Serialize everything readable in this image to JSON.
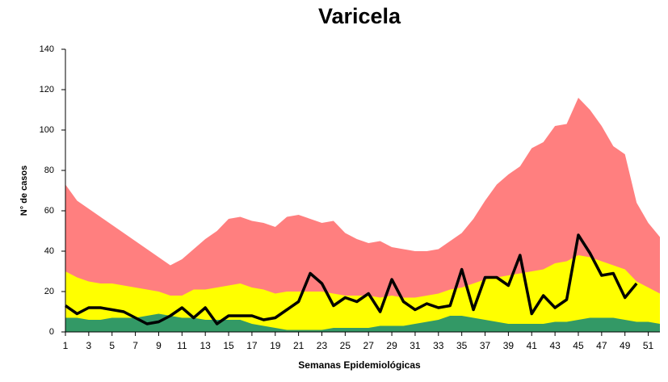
{
  "chart_data": {
    "type": "area",
    "title": "Varicela",
    "x_label": "Semanas Epidemiológicas",
    "y_label": "N° de casos",
    "x": [
      1,
      2,
      3,
      4,
      5,
      6,
      7,
      8,
      9,
      10,
      11,
      12,
      13,
      14,
      15,
      16,
      17,
      18,
      19,
      20,
      21,
      22,
      23,
      24,
      25,
      26,
      27,
      28,
      29,
      30,
      31,
      32,
      33,
      34,
      35,
      36,
      37,
      38,
      39,
      40,
      41,
      42,
      43,
      44,
      45,
      46,
      47,
      48,
      49,
      50,
      51,
      52
    ],
    "xlim": [
      1,
      52
    ],
    "xticks": [
      1,
      3,
      5,
      7,
      9,
      11,
      13,
      15,
      17,
      19,
      21,
      23,
      25,
      27,
      29,
      31,
      33,
      35,
      37,
      39,
      41,
      43,
      45,
      47,
      49,
      51
    ],
    "ylim": [
      0,
      140
    ],
    "yticks": [
      0,
      20,
      40,
      60,
      80,
      100,
      120,
      140
    ],
    "grid": false,
    "series": [
      {
        "color": "#ff7f7f",
        "values": [
          73,
          65,
          61,
          57,
          53,
          49,
          45,
          41,
          37,
          33,
          36,
          41,
          46,
          50,
          56,
          57,
          55,
          54,
          52,
          57,
          58,
          56,
          54,
          55,
          49,
          46,
          44,
          45,
          42,
          41,
          40,
          40,
          41,
          45,
          49,
          56,
          65,
          73,
          78,
          82,
          91,
          94,
          102,
          103,
          116,
          110,
          102,
          92,
          88,
          64,
          54,
          47
        ]
      },
      {
        "color": "#ffff00",
        "values": [
          30,
          27,
          25,
          24,
          24,
          23,
          22,
          21,
          20,
          18,
          18,
          21,
          21,
          22,
          23,
          24,
          22,
          21,
          19,
          20,
          20,
          20,
          20,
          19,
          18,
          18,
          18,
          17,
          18,
          17,
          17,
          18,
          19,
          21,
          22,
          24,
          26,
          27,
          28,
          29,
          30,
          31,
          34,
          35,
          38,
          37,
          35,
          33,
          31,
          25,
          22,
          19
        ]
      },
      {
        "color": "#339966",
        "values": [
          7,
          7,
          6,
          6,
          7,
          7,
          7,
          8,
          9,
          8,
          7,
          7,
          6,
          6,
          6,
          6,
          4,
          3,
          2,
          1,
          1,
          1,
          1,
          2,
          2,
          2,
          2,
          3,
          3,
          3,
          4,
          5,
          6,
          8,
          8,
          7,
          6,
          5,
          4,
          4,
          4,
          4,
          5,
          5,
          6,
          7,
          7,
          7,
          6,
          5,
          5,
          4
        ]
      },
      {
        "type": "line",
        "color": "#000000",
        "values": [
          13,
          9,
          12,
          12,
          11,
          10,
          7,
          4,
          5,
          8,
          12,
          7,
          12,
          4,
          8,
          8,
          8,
          6,
          7,
          11,
          15,
          29,
          24,
          13,
          17,
          15,
          19,
          10,
          26,
          15,
          11,
          14,
          12,
          13,
          31,
          11,
          27,
          27,
          23,
          38,
          9,
          18,
          12,
          16,
          48,
          39,
          28,
          29,
          17,
          24,
          null,
          null
        ]
      }
    ]
  }
}
